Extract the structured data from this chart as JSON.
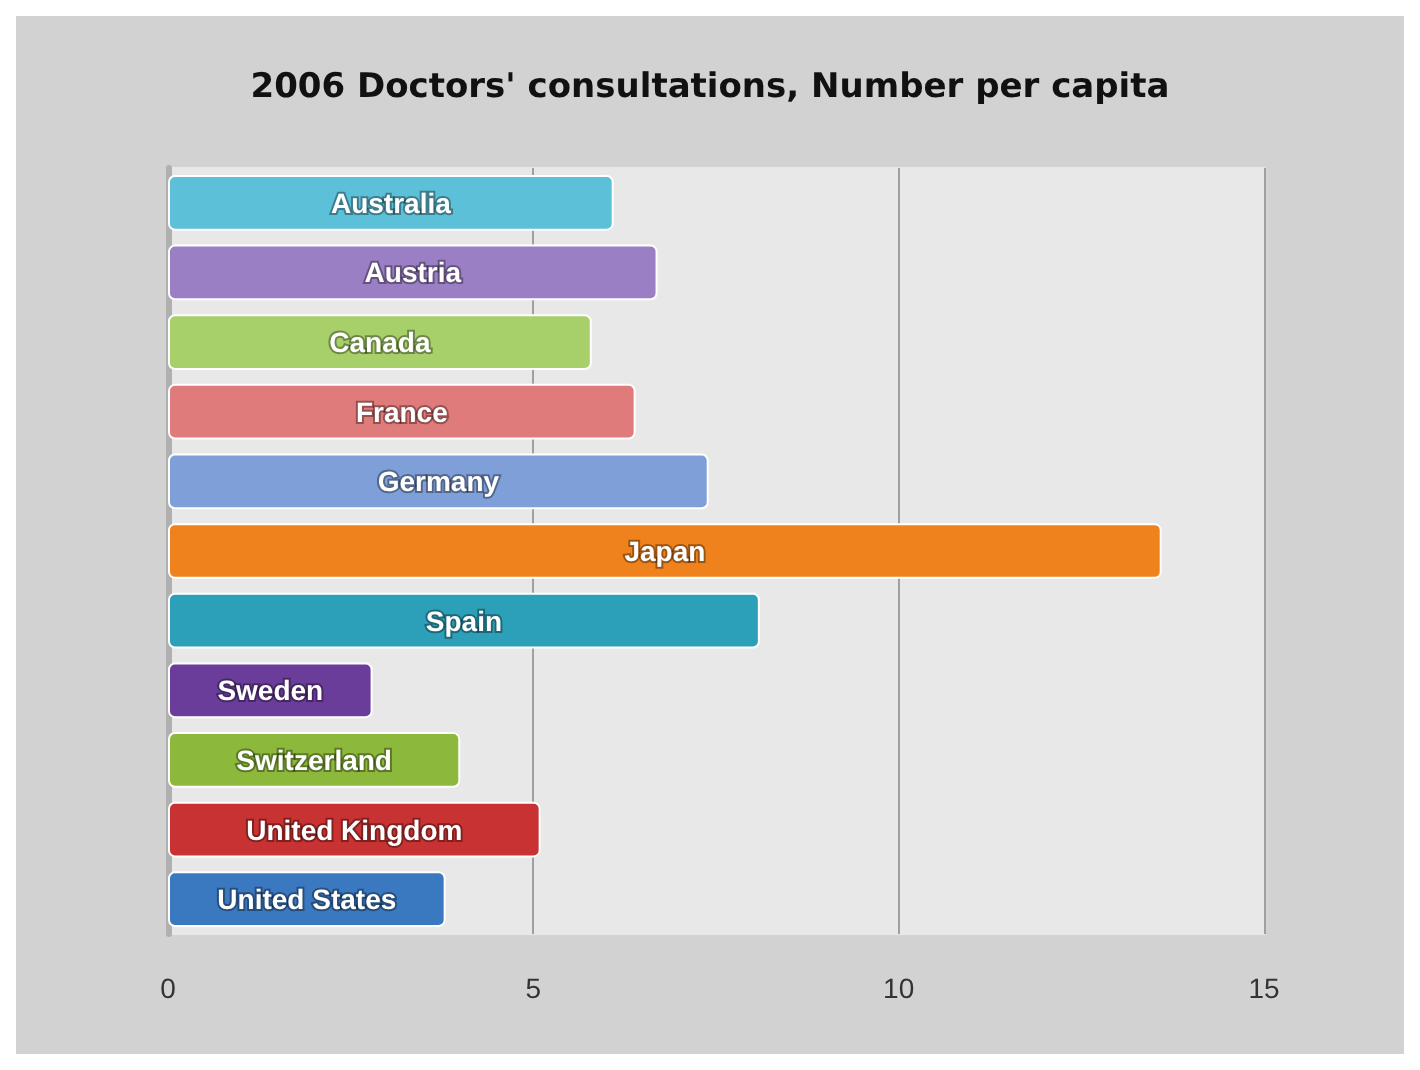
{
  "chart_data": {
    "type": "bar",
    "orientation": "horizontal",
    "title": "2006 Doctors' consultations, Number per capita",
    "categories": [
      "Australia",
      "Austria",
      "Canada",
      "France",
      "Germany",
      "Japan",
      "Spain",
      "Sweden",
      "Switzerland",
      "United Kingdom",
      "United States"
    ],
    "values": [
      6.1,
      6.7,
      5.8,
      6.4,
      7.4,
      13.6,
      8.1,
      2.8,
      4.0,
      5.1,
      3.8
    ],
    "colors": [
      "#5bc0d8",
      "#9b7fc4",
      "#a8d06a",
      "#e07b7b",
      "#7f9fd8",
      "#f0821e",
      "#2ca0b8",
      "#6a3d9a",
      "#8cb83c",
      "#c83232",
      "#3a78c0"
    ],
    "xlim": [
      0,
      15
    ],
    "xticks": [
      0,
      5,
      10,
      15
    ],
    "grid": "x",
    "tick_labels": "x"
  }
}
